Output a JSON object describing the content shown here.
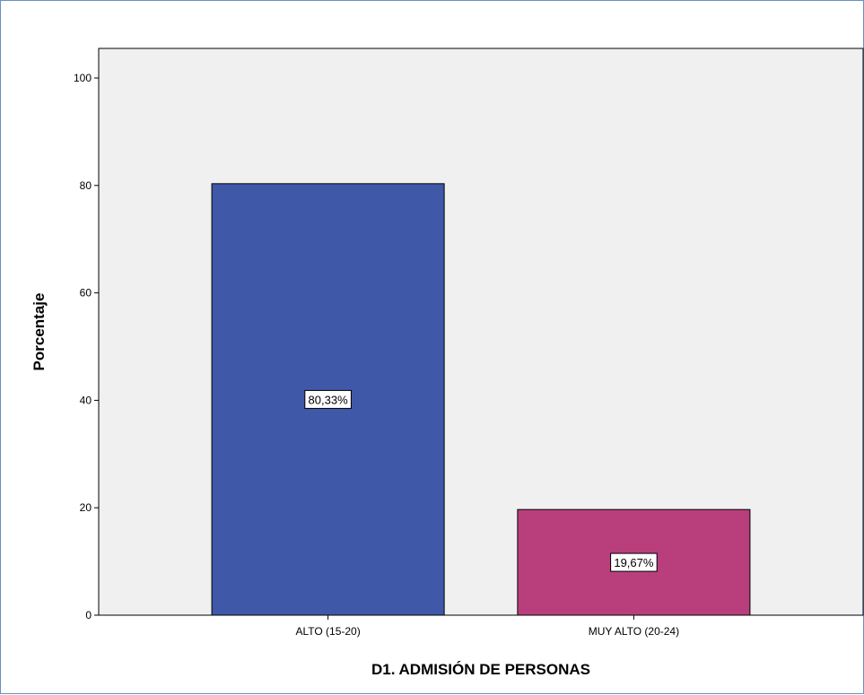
{
  "chart_data": {
    "type": "bar",
    "categories": [
      "ALTO (15-20)",
      "MUY ALTO (20-24)"
    ],
    "values": [
      80.33,
      19.67
    ],
    "data_labels": [
      "80,33%",
      "19,67%"
    ],
    "colors": [
      "#3f58a8",
      "#b83f7c"
    ],
    "xlabel": "D1. ADMISIÓN DE PERSONAS",
    "ylabel": "Porcentaje",
    "ylim": [
      0,
      100
    ],
    "yticks": [
      0,
      20,
      40,
      60,
      80,
      100
    ],
    "ytick_labels": [
      "0",
      "20",
      "40",
      "60",
      "80",
      "100"
    ],
    "grid": false,
    "plot_background": "#f0f0f0"
  }
}
